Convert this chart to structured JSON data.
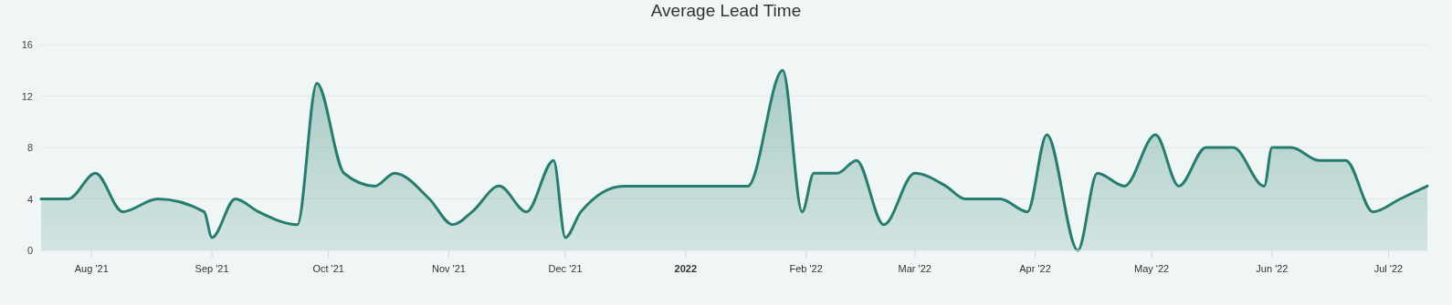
{
  "chart_data": {
    "type": "area",
    "title": "Average Lead Time",
    "x": [
      "2021-07-19",
      "2021-07-26",
      "2021-08-02",
      "2021-08-09",
      "2021-08-18",
      "2021-08-30",
      "2021-09-01",
      "2021-09-07",
      "2021-09-13",
      "2021-09-23",
      "2021-09-28",
      "2021-10-05",
      "2021-10-13",
      "2021-10-18",
      "2021-10-27",
      "2021-11-02",
      "2021-11-07",
      "2021-11-14",
      "2021-11-21",
      "2021-11-28",
      "2021-12-01",
      "2021-12-05",
      "2021-12-16",
      "2022-01-17",
      "2022-01-26",
      "2022-01-31",
      "2022-02-03",
      "2022-02-09",
      "2022-02-14",
      "2022-02-21",
      "2022-03-01",
      "2022-03-09",
      "2022-03-14",
      "2022-03-23",
      "2022-03-30",
      "2022-04-04",
      "2022-04-12",
      "2022-04-17",
      "2022-04-24",
      "2022-05-02",
      "2022-05-08",
      "2022-05-15",
      "2022-05-22",
      "2022-05-30",
      "2022-06-01",
      "2022-06-06",
      "2022-06-13",
      "2022-06-20",
      "2022-06-27",
      "2022-07-04",
      "2022-07-11"
    ],
    "series": [
      {
        "color": "#267d6f",
        "values": [
          4,
          4,
          6,
          3,
          4,
          3,
          1,
          4,
          3,
          2,
          13,
          6,
          5,
          6,
          4,
          2,
          3,
          5,
          3,
          7,
          1,
          3,
          5,
          5,
          14,
          3,
          6,
          6,
          7,
          2,
          6,
          5,
          4,
          4,
          3,
          9,
          0,
          6,
          5,
          9,
          5,
          8,
          8,
          5,
          8,
          8,
          7,
          7,
          3,
          4,
          5
        ]
      }
    ],
    "xlim": [
      "2021-07-19",
      "2022-07-11"
    ],
    "xticks": [
      {
        "value": "2021-08-01",
        "label": "Aug '21"
      },
      {
        "value": "2021-09-01",
        "label": "Sep '21"
      },
      {
        "value": "2021-10-01",
        "label": "Oct '21"
      },
      {
        "value": "2021-11-01",
        "label": "Nov '21"
      },
      {
        "value": "2021-12-01",
        "label": "Dec '21"
      },
      {
        "value": "2022-01-01",
        "label": "2022"
      },
      {
        "value": "2022-02-01",
        "label": "Feb '22"
      },
      {
        "value": "2022-03-01",
        "label": "Mar '22"
      },
      {
        "value": "2022-04-01",
        "label": "Apr '22"
      },
      {
        "value": "2022-05-01",
        "label": "May '22"
      },
      {
        "value": "2022-06-01",
        "label": "Jun '22"
      },
      {
        "value": "2022-07-01",
        "label": "Jul '22"
      }
    ],
    "ylim": [
      0,
      16
    ],
    "yticks": [
      0,
      4,
      8,
      12,
      16
    ],
    "grid": "y",
    "marker": "none"
  }
}
